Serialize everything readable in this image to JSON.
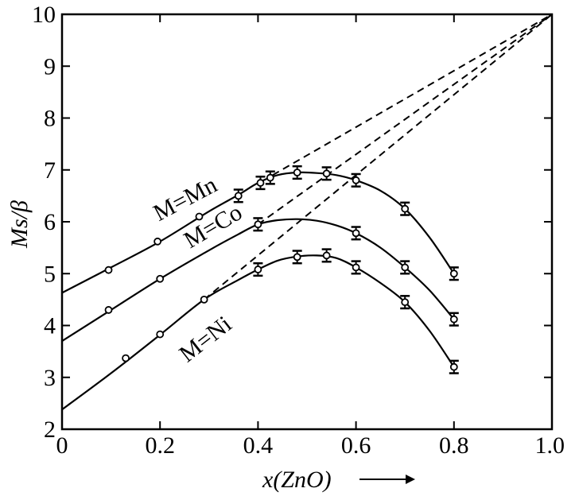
{
  "chart_data": {
    "type": "line",
    "xlabel": "x(ZnO)",
    "ylabel": "Ms/β",
    "xlim": [
      0,
      1.0
    ],
    "ylim": [
      2,
      10
    ],
    "xticks": [
      "0",
      "0.2",
      "0.4",
      "0.6",
      "0.8",
      "1.0"
    ],
    "yticks": [
      "2",
      "3",
      "4",
      "5",
      "6",
      "7",
      "8",
      "9",
      "10"
    ],
    "grid": false,
    "series": [
      {
        "name": "M=Mn",
        "x": [
          0.095,
          0.195,
          0.28,
          0.36,
          0.405,
          0.425,
          0.48,
          0.54,
          0.6,
          0.7,
          0.8
        ],
        "y": [
          5.07,
          5.62,
          6.1,
          6.5,
          6.75,
          6.85,
          6.95,
          6.93,
          6.8,
          6.25,
          5.0
        ],
        "error": [
          0,
          0,
          0,
          0.12,
          0.12,
          0.12,
          0.12,
          0.12,
          0.12,
          0.12,
          0.12
        ],
        "curve_x": [
          0,
          0.1,
          0.2,
          0.3,
          0.36,
          0.4,
          0.44,
          0.48,
          0.52,
          0.56,
          0.6,
          0.65,
          0.7,
          0.75,
          0.8
        ],
        "curve_y": [
          4.63,
          5.12,
          5.62,
          6.2,
          6.52,
          6.75,
          6.9,
          6.95,
          6.94,
          6.9,
          6.8,
          6.6,
          6.25,
          5.7,
          5.0
        ],
        "extrapolation": {
          "from": [
            0.43,
            6.9
          ],
          "to": [
            1.0,
            10.0
          ]
        }
      },
      {
        "name": "M=Co",
        "x": [
          0.095,
          0.2,
          0.4,
          0.6,
          0.7,
          0.8
        ],
        "y": [
          4.3,
          4.9,
          5.95,
          5.78,
          5.12,
          4.12
        ],
        "error": [
          0,
          0,
          0.12,
          0.12,
          0.12,
          0.12
        ],
        "curve_x": [
          0,
          0.1,
          0.2,
          0.3,
          0.36,
          0.4,
          0.44,
          0.48,
          0.52,
          0.56,
          0.6,
          0.65,
          0.7,
          0.75,
          0.8
        ],
        "curve_y": [
          3.7,
          4.3,
          4.9,
          5.45,
          5.76,
          5.95,
          6.03,
          6.05,
          6.02,
          5.93,
          5.78,
          5.5,
          5.12,
          4.68,
          4.12
        ],
        "extrapolation": {
          "from": [
            0.4,
            5.95
          ],
          "to": [
            1.0,
            10.0
          ]
        }
      },
      {
        "name": "M=Ni",
        "x": [
          0.13,
          0.2,
          0.29,
          0.4,
          0.48,
          0.54,
          0.6,
          0.7,
          0.8
        ],
        "y": [
          3.37,
          3.83,
          4.5,
          5.08,
          5.32,
          5.35,
          5.12,
          4.45,
          3.2
        ],
        "error": [
          0,
          0,
          0,
          0.12,
          0.12,
          0.12,
          0.12,
          0.12,
          0.12
        ],
        "curve_x": [
          0,
          0.1,
          0.2,
          0.29,
          0.36,
          0.4,
          0.44,
          0.48,
          0.52,
          0.56,
          0.6,
          0.65,
          0.7,
          0.75,
          0.8
        ],
        "curve_y": [
          2.38,
          3.08,
          3.82,
          4.5,
          4.88,
          5.08,
          5.25,
          5.33,
          5.35,
          5.3,
          5.12,
          4.82,
          4.45,
          3.9,
          3.2
        ],
        "extrapolation": {
          "from": [
            0.29,
            4.5
          ],
          "to": [
            1.0,
            10.0
          ]
        }
      }
    ]
  }
}
